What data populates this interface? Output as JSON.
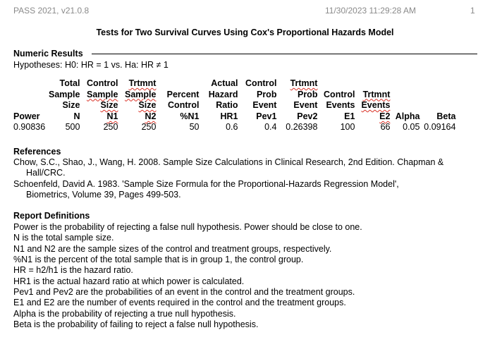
{
  "header": {
    "app_version": "PASS 2021, v21.0.8",
    "timestamp": "11/30/2023 11:29:28 AM",
    "page_number": "1"
  },
  "title": "Tests for Two Survival Curves Using Cox's Proportional Hazards Model",
  "numeric_results": {
    "heading": "Numeric Results",
    "hypotheses": "Hypotheses: H0: HR = 1     vs.     Ha: HR ≠ 1",
    "header_rows": [
      [
        "",
        "Total",
        "Control",
        "Trtmnt",
        "",
        "Actual",
        "Control",
        "Trtmnt",
        "",
        "",
        "",
        ""
      ],
      [
        "",
        "Sample",
        "Sample",
        "Sample",
        "Percent",
        "Hazard",
        "Prob",
        "Prob",
        "Control",
        "Trtmnt",
        "",
        ""
      ],
      [
        "",
        "Size",
        "Size",
        "Size",
        "Control",
        "Ratio",
        "Event",
        "Event",
        "Events",
        "Events",
        "",
        ""
      ],
      [
        "Power",
        "N",
        "N1",
        "N2",
        "%N1",
        "HR1",
        "Pev1",
        "Pev2",
        "E1",
        "E2",
        "Alpha",
        "Beta"
      ]
    ],
    "rows": [
      [
        "0.90836",
        "500",
        "250",
        "250",
        "50",
        "0.6",
        "0.4",
        "0.26398",
        "100",
        "66",
        "0.05",
        "0.09164"
      ]
    ]
  },
  "references": {
    "heading": "References",
    "lines": [
      "Chow, S.C., Shao, J., Wang, H. 2008. Sample Size Calculations in Clinical Research, 2nd Edition. Chapman &",
      "Hall/CRC.",
      "Schoenfeld, David A. 1983. 'Sample Size Formula for the Proportional-Hazards Regression Model',",
      "Biometrics, Volume 39, Pages 499-503."
    ]
  },
  "report_definitions": {
    "heading": "Report Definitions",
    "lines": [
      "Power is the probability of rejecting a false null hypothesis. Power should be close to one.",
      "N is the total sample size.",
      "N1 and N2 are the sample sizes of the control and treatment groups, respectively.",
      "%N1 is the percent of the total sample that is in group 1, the control group.",
      "HR = h2/h1 is the hazard ratio.",
      "HR1 is the actual hazard ratio at which power is calculated.",
      "Pev1 and Pev2 are the probabilities of an event in the control and the treatment groups.",
      "E1 and E2 are the number of events required in the control and the treatment groups.",
      "Alpha is the probability of rejecting a true null hypothesis.",
      "Beta is the probability of failing to reject a false null hypothesis."
    ]
  }
}
